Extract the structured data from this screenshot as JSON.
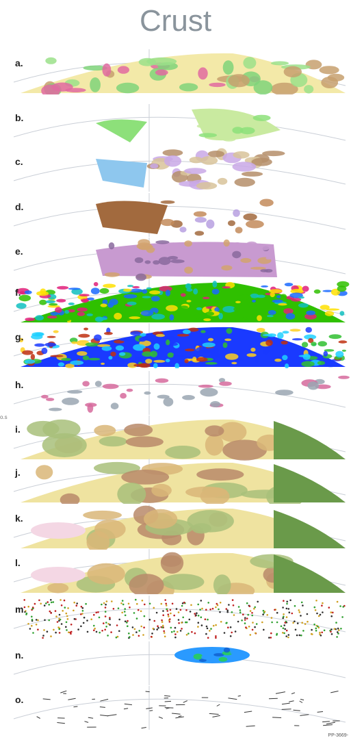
{
  "title": "Crust",
  "panels": [
    {
      "label": "a."
    },
    {
      "label": "b."
    },
    {
      "label": "c."
    },
    {
      "label": "d."
    },
    {
      "label": "e."
    },
    {
      "label": "f."
    },
    {
      "label": "g."
    },
    {
      "label": "h."
    },
    {
      "label": "i."
    },
    {
      "label": "j."
    },
    {
      "label": "k."
    },
    {
      "label": "l."
    },
    {
      "label": "m."
    },
    {
      "label": "n."
    },
    {
      "label": "o."
    }
  ],
  "credit": "PP-3669-",
  "edge_fragment": "o.s",
  "colors": {
    "title": "#8a949c",
    "geology_a": [
      "#f3e9a8",
      "#9be08a",
      "#c7a06e",
      "#7fd37a",
      "#e06aa0"
    ],
    "geology_b": [
      "#8de07a",
      "#c9eaa0"
    ],
    "geology_c": [
      "#8ec7ee",
      "#b58e6a",
      "#d8c39a",
      "#c9a8e6"
    ],
    "geology_d": [
      "#a26a3e",
      "#c38b5a",
      "#b7a0e0"
    ],
    "geology_e": [
      "#c89ad0",
      "#d2a36e",
      "#8a6a9e"
    ],
    "spectrum_f": [
      "#2fc000",
      "#ffe000",
      "#e0207a",
      "#1a6aff",
      "#10c0c0"
    ],
    "spectrum_g": [
      "#1a3aff",
      "#20d0ff",
      "#30c030",
      "#ffd020",
      "#c03010"
    ],
    "sparse_h": [
      "#d66a9c",
      "#9aa6b2"
    ],
    "thickness": [
      "#efe3a0",
      "#d9b678",
      "#a8c07a",
      "#6a9a4a",
      "#f4d7e4",
      "#b88a6a"
    ],
    "points_m": [
      "#c02020",
      "#30a030",
      "#d0a020",
      "#303030"
    ],
    "blob_n": [
      "#2a9aff",
      "#28d050",
      "#1060d0"
    ]
  }
}
